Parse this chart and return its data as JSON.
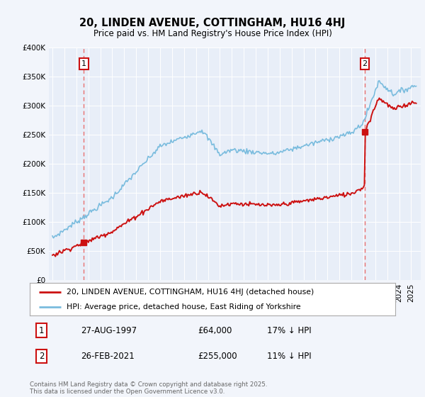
{
  "title": "20, LINDEN AVENUE, COTTINGHAM, HU16 4HJ",
  "subtitle": "Price paid vs. HM Land Registry's House Price Index (HPI)",
  "legend_line1": "20, LINDEN AVENUE, COTTINGHAM, HU16 4HJ (detached house)",
  "legend_line2": "HPI: Average price, detached house, East Riding of Yorkshire",
  "annotation1_date": "27-AUG-1997",
  "annotation1_price": 64000,
  "annotation1_text": "17% ↓ HPI",
  "annotation2_date": "26-FEB-2021",
  "annotation2_price": 255000,
  "annotation2_text": "11% ↓ HPI",
  "footnote": "Contains HM Land Registry data © Crown copyright and database right 2025.\nThis data is licensed under the Open Government Licence v3.0.",
  "hpi_color": "#7abcde",
  "price_color": "#cc1111",
  "dashed_line_color": "#e87070",
  "background_color": "#f2f5fb",
  "plot_bg_color": "#e8eef8",
  "ylim": [
    0,
    400000
  ],
  "yticks": [
    0,
    50000,
    100000,
    150000,
    200000,
    250000,
    300000,
    350000,
    400000
  ],
  "sale1_time": 1997.625,
  "sale2_time": 2021.125
}
